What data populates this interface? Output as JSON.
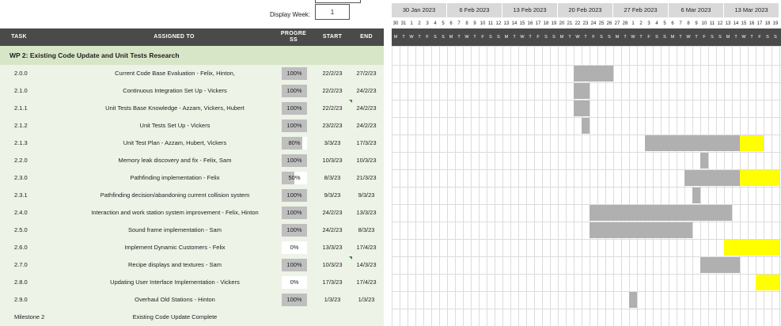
{
  "top": {
    "display_week_label": "Display Week:",
    "display_week_value": "1"
  },
  "weeks": [
    "30 Jan 2023",
    "6 Feb 2023",
    "13 Feb 2023",
    "20 Feb 2023",
    "27 Feb 2023",
    "6 Mar 2023",
    "13 Mar 2023"
  ],
  "day_numbers": [
    "30",
    "31",
    "1",
    "2",
    "3",
    "4",
    "5",
    "6",
    "7",
    "8",
    "9",
    "10",
    "11",
    "12",
    "13",
    "14",
    "15",
    "16",
    "17",
    "18",
    "19",
    "20",
    "21",
    "22",
    "23",
    "24",
    "25",
    "26",
    "27",
    "28",
    "1",
    "2",
    "3",
    "4",
    "5",
    "6",
    "7",
    "8",
    "9",
    "10",
    "11",
    "12",
    "13",
    "14",
    "15",
    "16",
    "17",
    "18",
    "19"
  ],
  "day_letters": [
    "M",
    "T",
    "W",
    "T",
    "F",
    "S",
    "S"
  ],
  "header": {
    "task": "TASK",
    "assigned": "ASSIGNED TO",
    "progress": "PROGRE SS",
    "start": "START",
    "end": "END"
  },
  "section": "WP 2: Existing Code Update and Unit Tests Research",
  "colors": {
    "bar": "#b0b0b0",
    "overdue": "#ffff00",
    "header": "#4a4a4a",
    "row": "#edf3e7",
    "section": "#d8e6c8"
  },
  "tasks": [
    {
      "id": "2.0.0",
      "name": "Current Code Base Evaluation - Felix, Hinton,",
      "progress": "100%",
      "pct": 100,
      "start": "22/2/23",
      "end": "27/2/23",
      "s": 23,
      "e": 28,
      "y": 0
    },
    {
      "id": "2.1.0",
      "name": "Continuous Integration Set Up - Vickers",
      "progress": "100%",
      "pct": 100,
      "start": "22/2/23",
      "end": "24/2/23",
      "s": 23,
      "e": 25,
      "y": 0
    },
    {
      "id": "2.1.1",
      "name": "Unit Tests Base Knowledge - Azzam, Vickers, Hubert",
      "progress": "100%",
      "pct": 100,
      "start": "22/2/23",
      "end": "24/2/23",
      "s": 23,
      "e": 25,
      "y": 0,
      "flag": true
    },
    {
      "id": "2.1.2",
      "name": "Unit Tests Set Up - Vickers",
      "progress": "100%",
      "pct": 100,
      "start": "23/2/23",
      "end": "24/2/23",
      "s": 24,
      "e": 25,
      "y": 0
    },
    {
      "id": "2.1.3",
      "name": "Unit Test Plan - Azzam, Hubert, Vickers",
      "progress": "80%",
      "pct": 80,
      "start": "3/3/23",
      "end": "17/3/23",
      "s": 32,
      "e": 44,
      "y": 3
    },
    {
      "id": "2.2.0",
      "name": "Memory leak discovery and fix - Felix, Sam",
      "progress": "100%",
      "pct": 100,
      "start": "10/3/23",
      "end": "10/3/23",
      "s": 39,
      "e": 40,
      "y": 0
    },
    {
      "id": "2.3.0",
      "name": "Pathfinding implementation - Felix",
      "progress": "50%",
      "pct": 50,
      "start": "8/3/23",
      "end": "21/3/23",
      "s": 37,
      "e": 44,
      "y": 5
    },
    {
      "id": "2.3.1",
      "name": "Pathfinding decision/abandoning current collision system",
      "progress": "100%",
      "pct": 100,
      "start": "9/3/23",
      "end": "9/3/23",
      "s": 38,
      "e": 39,
      "y": 0
    },
    {
      "id": "2.4.0",
      "name": "Interaction and work station system improvement - Felix, Hinton",
      "progress": "100%",
      "pct": 100,
      "start": "24/2/23",
      "end": "13/3/23",
      "s": 25,
      "e": 43,
      "y": 0
    },
    {
      "id": "2.5.0",
      "name": "Sound frame implementation - Sam",
      "progress": "100%",
      "pct": 100,
      "start": "24/2/23",
      "end": "8/3/23",
      "s": 25,
      "e": 38,
      "y": 0
    },
    {
      "id": "2.6.0",
      "name": "Implement Dynamic Customers - Felix",
      "progress": "0%",
      "pct": 0,
      "start": "13/3/23",
      "end": "17/4/23",
      "s": 42,
      "e": 42,
      "y": 7
    },
    {
      "id": "2.7.0",
      "name": "Recipe displays and textures - Sam",
      "progress": "100%",
      "pct": 100,
      "start": "10/3/23",
      "end": "14/3/23",
      "s": 39,
      "e": 44,
      "y": 0,
      "flag": true
    },
    {
      "id": "2.8.0",
      "name": "Updating User Interface Implementation - Vickers",
      "progress": "0%",
      "pct": 0,
      "start": "17/3/23",
      "end": "17/4/23",
      "s": 46,
      "e": 46,
      "y": 3
    },
    {
      "id": "2.9.0",
      "name": "Overhaul Old Stations - Hinton",
      "progress": "100%",
      "pct": 100,
      "start": "1/3/23",
      "end": "1/3/23",
      "s": 30,
      "e": 31,
      "y": 0
    },
    {
      "id": "Milestone 2",
      "name": "Existing Code Update Complete",
      "progress": "",
      "pct": -1,
      "start": "",
      "end": "",
      "s": 0,
      "e": 0,
      "y": 0
    }
  ]
}
